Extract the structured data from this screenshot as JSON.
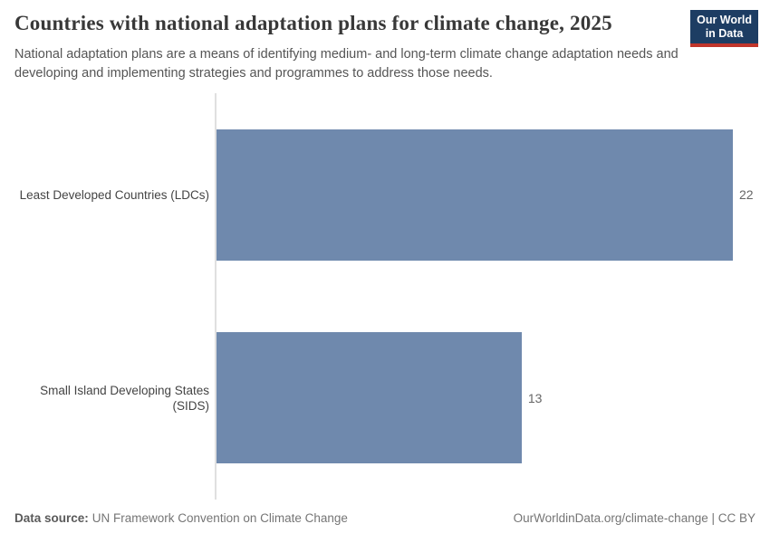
{
  "chart_data": {
    "type": "bar",
    "orientation": "horizontal",
    "title": "Countries with national adaptation plans for climate change, 2025",
    "subtitle": "National adaptation plans are a means of identifying medium- and long-term climate change adaptation needs and developing and implementing strategies and programmes to address those needs.",
    "categories": [
      "Least Developed Countries (LDCs)",
      "Small Island Developing States (SIDS)"
    ],
    "values": [
      22,
      13
    ],
    "data_labels": [
      "22",
      "13"
    ],
    "xlabel": "",
    "ylabel": "",
    "xlim": [
      0,
      22
    ],
    "grid": false,
    "legend": false,
    "bar_color": "#6f89ad",
    "axis_line_color": "#e0e0e0"
  },
  "logo": {
    "line1": "Our World",
    "line2": "in Data",
    "bg_color": "#1d3d63",
    "accent_color": "#c0352b"
  },
  "footer": {
    "source_label": "Data source:",
    "source_text": "UN Framework Convention on Climate Change",
    "right_text": "OurWorldinData.org/climate-change | CC BY"
  }
}
